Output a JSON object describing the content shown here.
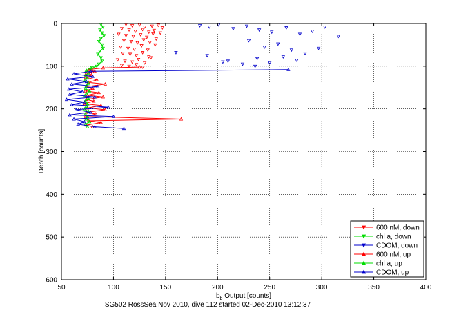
{
  "chart_data": {
    "type": "scatter",
    "xlabel_base": "b",
    "xlabel_sub": "b",
    "xlabel_rest": " Output [counts]",
    "ylabel": "Depth [counts]",
    "footer": "SG502 RossSea Nov 2010, dive 112 started 02-Dec-2010 13:12:37",
    "xlim": [
      50,
      400
    ],
    "ylim": [
      0,
      600
    ],
    "y_reversed": true,
    "grid": "dotted",
    "legend_placement": "bottom-right",
    "xticks": [
      50,
      100,
      150,
      200,
      250,
      300,
      350,
      400
    ],
    "yticks": [
      0,
      100,
      200,
      300,
      400,
      500,
      600
    ],
    "series": [
      {
        "name": "600 nM, down",
        "color": "#ff0000",
        "marker": "down-triangle",
        "line": false,
        "points": [
          [
            112,
            2
          ],
          [
            118,
            5
          ],
          [
            125,
            3
          ],
          [
            130,
            8
          ],
          [
            137,
            6
          ],
          [
            143,
            4
          ],
          [
            108,
            12
          ],
          [
            115,
            15
          ],
          [
            121,
            18
          ],
          [
            128,
            14
          ],
          [
            134,
            20
          ],
          [
            139,
            16
          ],
          [
            147,
            10
          ],
          [
            105,
            25
          ],
          [
            112,
            28
          ],
          [
            119,
            30
          ],
          [
            126,
            26
          ],
          [
            132,
            32
          ],
          [
            138,
            24
          ],
          [
            145,
            22
          ],
          [
            110,
            40
          ],
          [
            117,
            42
          ],
          [
            123,
            45
          ],
          [
            129,
            38
          ],
          [
            135,
            44
          ],
          [
            141,
            36
          ],
          [
            107,
            55
          ],
          [
            114,
            58
          ],
          [
            120,
            60
          ],
          [
            127,
            52
          ],
          [
            133,
            62
          ],
          [
            140,
            50
          ],
          [
            109,
            70
          ],
          [
            116,
            72
          ],
          [
            122,
            75
          ],
          [
            128,
            68
          ],
          [
            134,
            78
          ],
          [
            104,
            85
          ],
          [
            111,
            88
          ],
          [
            118,
            90
          ],
          [
            124,
            84
          ],
          [
            130,
            92
          ],
          [
            136,
            80
          ],
          [
            108,
            98
          ],
          [
            115,
            100
          ],
          [
            122,
            96
          ],
          [
            128,
            102
          ]
        ]
      },
      {
        "name": "chl a, down",
        "color": "#00dd00",
        "marker": "down-triangle",
        "line": true,
        "points": [
          [
            88,
            2
          ],
          [
            90,
            8
          ],
          [
            87,
            15
          ],
          [
            89,
            22
          ],
          [
            91,
            28
          ],
          [
            88,
            35
          ],
          [
            86,
            42
          ],
          [
            89,
            50
          ],
          [
            90,
            58
          ],
          [
            87,
            65
          ],
          [
            85,
            72
          ],
          [
            88,
            80
          ],
          [
            89,
            88
          ],
          [
            86,
            95
          ],
          [
            84,
            100
          ],
          [
            80,
            104
          ],
          [
            78,
            108
          ]
        ]
      },
      {
        "name": "CDOM, down",
        "color": "#0000cc",
        "marker": "down-triangle",
        "line": false,
        "points": [
          [
            183,
            5
          ],
          [
            192,
            8
          ],
          [
            201,
            3
          ],
          [
            215,
            12
          ],
          [
            228,
            6
          ],
          [
            240,
            15
          ],
          [
            252,
            20
          ],
          [
            266,
            10
          ],
          [
            279,
            25
          ],
          [
            291,
            18
          ],
          [
            303,
            8
          ],
          [
            316,
            30
          ],
          [
            230,
            40
          ],
          [
            245,
            55
          ],
          [
            258,
            48
          ],
          [
            271,
            62
          ],
          [
            284,
            70
          ],
          [
            297,
            58
          ],
          [
            210,
            88
          ],
          [
            224,
            95
          ],
          [
            238,
            82
          ],
          [
            250,
            92
          ],
          [
            263,
            78
          ],
          [
            276,
            86
          ],
          [
            160,
            68
          ],
          [
            190,
            75
          ],
          [
            205,
            90
          ],
          [
            236,
            100
          ]
        ]
      },
      {
        "name": "600 nM, up",
        "color": "#ff0000",
        "marker": "up-triangle",
        "line": true,
        "points": [
          [
            125,
            102
          ],
          [
            90,
            104
          ],
          [
            76,
            108
          ],
          [
            82,
            112
          ],
          [
            74,
            116
          ],
          [
            79,
            120
          ],
          [
            73,
            126
          ],
          [
            84,
            132
          ],
          [
            76,
            138
          ],
          [
            92,
            142
          ],
          [
            74,
            148
          ],
          [
            80,
            152
          ],
          [
            73,
            158
          ],
          [
            86,
            162
          ],
          [
            75,
            168
          ],
          [
            90,
            172
          ],
          [
            74,
            178
          ],
          [
            81,
            182
          ],
          [
            72,
            188
          ],
          [
            88,
            192
          ],
          [
            75,
            198
          ],
          [
            92,
            202
          ],
          [
            74,
            208
          ],
          [
            83,
            212
          ],
          [
            73,
            218
          ],
          [
            165,
            224
          ],
          [
            76,
            228
          ],
          [
            88,
            232
          ],
          [
            74,
            238
          ],
          [
            80,
            242
          ]
        ]
      },
      {
        "name": "chl a, up",
        "color": "#00dd00",
        "marker": "up-triangle",
        "line": true,
        "points": [
          [
            78,
            104
          ],
          [
            74,
            110
          ],
          [
            76,
            116
          ],
          [
            73,
            122
          ],
          [
            75,
            128
          ],
          [
            72,
            134
          ],
          [
            76,
            140
          ],
          [
            74,
            146
          ],
          [
            73,
            152
          ],
          [
            77,
            158
          ],
          [
            74,
            164
          ],
          [
            72,
            170
          ],
          [
            76,
            176
          ],
          [
            73,
            182
          ],
          [
            75,
            188
          ],
          [
            74,
            194
          ],
          [
            72,
            200
          ],
          [
            76,
            206
          ],
          [
            73,
            212
          ],
          [
            75,
            218
          ],
          [
            74,
            224
          ],
          [
            77,
            230
          ],
          [
            73,
            236
          ],
          [
            75,
            242
          ]
        ]
      },
      {
        "name": "CDOM, up",
        "color": "#0000cc",
        "marker": "up-triangle",
        "line": true,
        "points": [
          [
            268,
            108
          ],
          [
            78,
            112
          ],
          [
            62,
            118
          ],
          [
            80,
            124
          ],
          [
            56,
            130
          ],
          [
            74,
            136
          ],
          [
            60,
            142
          ],
          [
            85,
            148
          ],
          [
            57,
            154
          ],
          [
            70,
            160
          ],
          [
            58,
            166
          ],
          [
            82,
            172
          ],
          [
            55,
            178
          ],
          [
            72,
            184
          ],
          [
            60,
            190
          ],
          [
            95,
            196
          ],
          [
            64,
            202
          ],
          [
            78,
            208
          ],
          [
            58,
            214
          ],
          [
            100,
            218
          ],
          [
            62,
            224
          ],
          [
            72,
            230
          ],
          [
            66,
            236
          ],
          [
            82,
            242
          ],
          [
            110,
            246
          ]
        ]
      }
    ]
  }
}
